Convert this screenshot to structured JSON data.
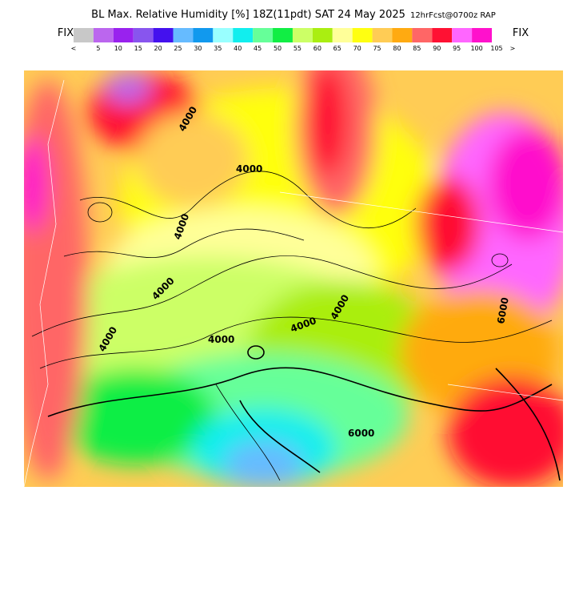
{
  "header": {
    "title": "BL Max. Relative Humidity [%] 18Z(11pdt) SAT 24 May 2025",
    "subtitle": "12hrFcst@0700z RAP"
  },
  "colorbar": {
    "fix_left": "FIX",
    "fix_right": "FIX",
    "labels": [
      "<",
      5,
      10,
      15,
      20,
      25,
      30,
      35,
      40,
      45,
      50,
      55,
      60,
      65,
      70,
      75,
      80,
      85,
      90,
      95,
      100,
      105,
      ">"
    ],
    "colors": [
      "#c8c8c8",
      "#bb66ee",
      "#9922ee",
      "#8855ee",
      "#4411ee",
      "#66bbff",
      "#1199ee",
      "#99ffff",
      "#11eeee",
      "#66ff99",
      "#11ee44",
      "#ccff66",
      "#aaee11",
      "#ffff99",
      "#ffff11",
      "#ffcc55",
      "#ffaa11",
      "#ff6666",
      "#ff1133",
      "#ff66ff",
      "#ff11cc"
    ]
  },
  "map": {
    "contour_labels": [
      "4000",
      "4000",
      "4000",
      "4000",
      "4000",
      "4000",
      "4000",
      "4000",
      "6000",
      "6000"
    ]
  }
}
